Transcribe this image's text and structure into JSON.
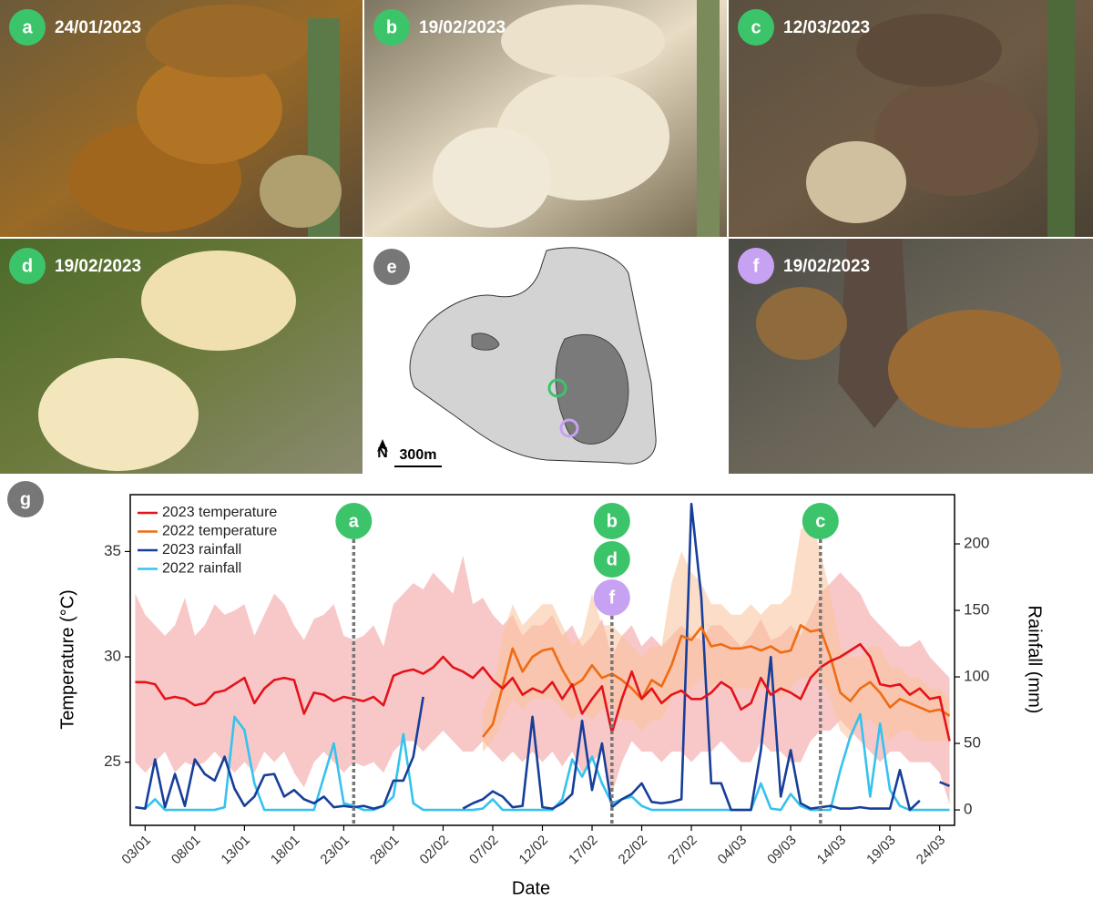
{
  "panels": [
    {
      "letter": "a",
      "date": "24/01/2023",
      "color": "#3cc46a"
    },
    {
      "letter": "b",
      "date": "19/02/2023",
      "color": "#3cc46a"
    },
    {
      "letter": "c",
      "date": "12/03/2023",
      "color": "#3cc46a"
    },
    {
      "letter": "d",
      "date": "19/02/2023",
      "color": "#3cc46a"
    },
    {
      "letter": "f",
      "date": "19/02/2023",
      "color": "#c8a2f2"
    }
  ],
  "map": {
    "letter": "e",
    "north": "N",
    "scale": "300m"
  },
  "chart_data": {
    "type": "line",
    "panel_label": "g",
    "x_label": "Date",
    "y_label": "Temperature (°C)",
    "y2_label": "Rainfall (mm)",
    "categories": [
      null,
      "03/01",
      null,
      null,
      null,
      null,
      "08/01",
      null,
      null,
      null,
      null,
      "13/01",
      null,
      null,
      null,
      null,
      "18/01",
      null,
      null,
      null,
      null,
      "23/01",
      null,
      null,
      null,
      null,
      "28/01",
      null,
      null,
      null,
      null,
      "02/02",
      null,
      null,
      null,
      null,
      "07/02",
      null,
      null,
      null,
      null,
      "12/02",
      null,
      null,
      null,
      null,
      "17/02",
      null,
      null,
      null,
      null,
      "22/02",
      null,
      null,
      null,
      null,
      "27/02",
      null,
      null,
      null,
      null,
      "04/03",
      null,
      null,
      null,
      null,
      "09/03",
      null,
      null,
      null,
      null,
      "14/03",
      null,
      null,
      null,
      null,
      "19/03",
      null,
      null,
      null,
      null,
      "24/03",
      null
    ],
    "ylim": [
      22,
      37.7
    ],
    "yticks": [
      25,
      30,
      35
    ],
    "y2lim": [
      -11.6,
      237
    ],
    "y2ticks": [
      0,
      50,
      100,
      150,
      200
    ],
    "legend": "upper left",
    "series": [
      {
        "name": "2023 temperature",
        "color": "#e3141b",
        "band_color": "#f39a9a",
        "values": [
          28.8,
          28.8,
          28.7,
          28.0,
          28.1,
          28.0,
          27.7,
          27.8,
          28.3,
          28.4,
          28.7,
          29.0,
          27.8,
          28.5,
          28.9,
          29.0,
          28.9,
          27.3,
          28.3,
          28.2,
          27.9,
          28.1,
          28.0,
          27.9,
          28.1,
          27.7,
          29.1,
          29.3,
          29.4,
          29.2,
          29.5,
          30.0,
          29.5,
          29.3,
          29.0,
          29.5,
          28.9,
          28.5,
          29.0,
          28.2,
          28.5,
          28.3,
          28.8,
          28.0,
          28.7,
          27.3,
          28.0,
          28.6,
          26.4,
          28.0,
          29.3,
          28.0,
          28.5,
          27.8,
          28.2,
          28.4,
          28.0,
          28.0,
          28.3,
          28.8,
          28.5,
          27.5,
          27.8,
          29.0,
          28.2,
          28.5,
          28.3,
          28.0,
          29.0,
          29.5,
          29.8,
          30.0,
          30.3,
          30.6,
          30.0,
          28.7,
          28.6,
          28.7,
          28.2,
          28.5,
          28.0,
          28.1,
          26.0
        ],
        "high": [
          33.0,
          32.0,
          31.5,
          31.0,
          31.5,
          32.8,
          31.0,
          31.5,
          32.5,
          32.0,
          32.2,
          32.5,
          31.0,
          32.0,
          33.0,
          32.5,
          31.5,
          30.8,
          31.8,
          32.0,
          32.5,
          31.0,
          30.8,
          31.0,
          31.5,
          30.5,
          32.5,
          33.0,
          33.5,
          33.2,
          34.0,
          33.5,
          33.0,
          34.8,
          32.5,
          32.8,
          32.0,
          31.5,
          32.0,
          31.0,
          31.5,
          31.5,
          32.0,
          31.0,
          31.5,
          30.5,
          31.0,
          31.8,
          30.0,
          31.0,
          31.5,
          30.5,
          31.0,
          30.5,
          31.0,
          31.5,
          31.0,
          30.8,
          31.5,
          31.5,
          31.0,
          30.5,
          31.0,
          31.8,
          30.8,
          31.0,
          31.5,
          31.0,
          32.0,
          33.0,
          33.5,
          34.0,
          33.5,
          33.0,
          32.0,
          31.5,
          31.0,
          30.5,
          30.5,
          30.8,
          30.0,
          29.5,
          29.0
        ],
        "low": [
          25.0,
          24.5,
          25.0,
          25.5,
          24.5,
          25.0,
          24.8,
          25.0,
          25.5,
          25.0,
          24.5,
          25.0,
          24.5,
          25.5,
          25.0,
          25.5,
          24.5,
          23.8,
          25.0,
          25.5,
          25.0,
          24.5,
          25.0,
          24.8,
          25.0,
          24.5,
          25.5,
          26.0,
          26.0,
          25.5,
          26.0,
          26.5,
          26.0,
          25.5,
          25.5,
          26.0,
          25.5,
          25.0,
          25.5,
          25.0,
          25.5,
          25.0,
          25.5,
          24.8,
          25.5,
          24.5,
          25.0,
          25.5,
          23.5,
          25.0,
          26.0,
          25.5,
          25.5,
          25.0,
          25.5,
          25.5,
          25.0,
          25.5,
          25.5,
          26.0,
          25.5,
          25.0,
          25.0,
          26.0,
          25.5,
          25.5,
          25.0,
          25.0,
          26.0,
          26.5,
          26.5,
          27.0,
          26.5,
          26.0,
          25.5,
          25.0,
          25.5,
          25.5,
          25.0,
          25.0,
          25.0,
          24.5,
          23.0
        ]
      },
      {
        "name": "2022 temperature",
        "color": "#ef6c12",
        "band_color": "#f9c39a",
        "values": [
          null,
          null,
          null,
          null,
          null,
          null,
          null,
          null,
          null,
          null,
          null,
          null,
          null,
          null,
          null,
          null,
          null,
          null,
          null,
          null,
          null,
          null,
          null,
          null,
          null,
          null,
          null,
          null,
          null,
          null,
          null,
          null,
          null,
          null,
          null,
          26.2,
          26.8,
          28.6,
          30.4,
          29.3,
          30.0,
          30.3,
          30.4,
          29.4,
          28.6,
          28.9,
          29.6,
          29.0,
          29.2,
          28.9,
          28.5,
          28.0,
          28.9,
          28.6,
          29.6,
          31.0,
          30.8,
          31.4,
          30.5,
          30.6,
          30.4,
          30.4,
          30.5,
          30.3,
          30.5,
          30.2,
          30.3,
          31.5,
          31.2,
          31.3,
          30.0,
          28.3,
          27.9,
          28.5,
          28.8,
          28.3,
          27.6,
          28.0,
          27.8,
          27.6,
          27.4,
          27.5,
          27.2
        ],
        "high": [
          null,
          null,
          null,
          null,
          null,
          null,
          null,
          null,
          null,
          null,
          null,
          null,
          null,
          null,
          null,
          null,
          null,
          null,
          null,
          null,
          null,
          null,
          null,
          null,
          null,
          null,
          null,
          null,
          null,
          null,
          null,
          null,
          null,
          null,
          null,
          27.5,
          28.5,
          31.0,
          32.5,
          31.5,
          32.0,
          32.5,
          32.5,
          31.5,
          30.5,
          31.0,
          33.0,
          31.5,
          31.5,
          31.0,
          30.5,
          30.0,
          30.5,
          30.5,
          33.5,
          35.0,
          34.0,
          33.5,
          32.5,
          32.5,
          32.0,
          32.0,
          32.5,
          32.0,
          32.5,
          32.5,
          33.0,
          36.0,
          36.5,
          35.0,
          33.0,
          30.5,
          30.0,
          30.0,
          30.5,
          30.5,
          29.5,
          29.5,
          29.0,
          29.0,
          28.5,
          28.5,
          28.0
        ],
        "low": [
          null,
          null,
          null,
          null,
          null,
          null,
          null,
          null,
          null,
          null,
          null,
          null,
          null,
          null,
          null,
          null,
          null,
          null,
          null,
          null,
          null,
          null,
          null,
          null,
          null,
          null,
          null,
          null,
          null,
          null,
          null,
          null,
          null,
          null,
          null,
          25.5,
          26.0,
          27.0,
          28.0,
          27.5,
          28.0,
          28.0,
          28.0,
          27.5,
          27.0,
          27.5,
          27.0,
          27.5,
          27.5,
          27.0,
          27.0,
          26.5,
          27.0,
          27.0,
          28.0,
          28.5,
          28.5,
          29.0,
          28.5,
          29.0,
          28.5,
          28.5,
          28.5,
          28.5,
          28.5,
          28.0,
          28.5,
          29.0,
          29.0,
          29.0,
          28.0,
          26.5,
          26.0,
          27.0,
          27.0,
          26.5,
          26.0,
          26.5,
          26.5,
          26.0,
          26.0,
          26.0,
          26.0
        ]
      },
      {
        "name": "2023 rainfall",
        "color": "#173e99",
        "axis": "y2",
        "values": [
          2,
          1,
          38,
          2,
          27,
          3,
          38,
          27,
          22,
          40,
          16,
          3,
          10,
          26,
          27,
          10,
          15,
          8,
          5,
          10,
          2,
          3,
          2,
          3,
          1,
          3,
          22,
          22,
          40,
          85,
          null,
          null,
          null,
          1,
          5,
          8,
          14,
          10,
          2,
          3,
          70,
          2,
          1,
          5,
          12,
          67,
          15,
          50,
          2,
          8,
          12,
          20,
          6,
          5,
          6,
          8,
          230,
          160,
          20,
          20,
          0,
          0,
          0,
          45,
          115,
          10,
          45,
          5,
          1,
          2,
          3,
          1,
          1,
          2,
          1,
          1,
          1,
          30,
          0,
          7,
          null,
          21,
          18
        ]
      },
      {
        "name": "2022 rainfall",
        "color": "#36c2ee",
        "axis": "y2",
        "values": [
          2,
          1,
          8,
          0,
          0,
          0,
          0,
          0,
          0,
          2,
          70,
          60,
          20,
          0,
          0,
          0,
          0,
          0,
          0,
          25,
          50,
          5,
          3,
          0,
          0,
          3,
          10,
          57,
          5,
          0,
          0,
          0,
          0,
          0,
          0,
          1,
          8,
          0,
          0,
          0,
          0,
          0,
          0,
          8,
          38,
          25,
          40,
          20,
          5,
          8,
          10,
          3,
          0,
          0,
          0,
          0,
          0,
          0,
          0,
          0,
          0,
          0,
          0,
          20,
          1,
          0,
          12,
          3,
          0,
          0,
          0,
          30,
          55,
          72,
          10,
          65,
          15,
          3,
          0,
          0,
          0,
          0,
          0
        ]
      }
    ],
    "events": [
      {
        "x": 22,
        "markers": [
          {
            "label": "a",
            "color": "#3cc46a"
          }
        ]
      },
      {
        "x": 48,
        "markers": [
          {
            "label": "b",
            "color": "#3cc46a"
          },
          {
            "label": "d",
            "color": "#3cc46a"
          },
          {
            "label": "f",
            "color": "#c8a2f2"
          }
        ]
      },
      {
        "x": 69,
        "markers": [
          {
            "label": "c",
            "color": "#3cc46a"
          }
        ]
      }
    ]
  }
}
